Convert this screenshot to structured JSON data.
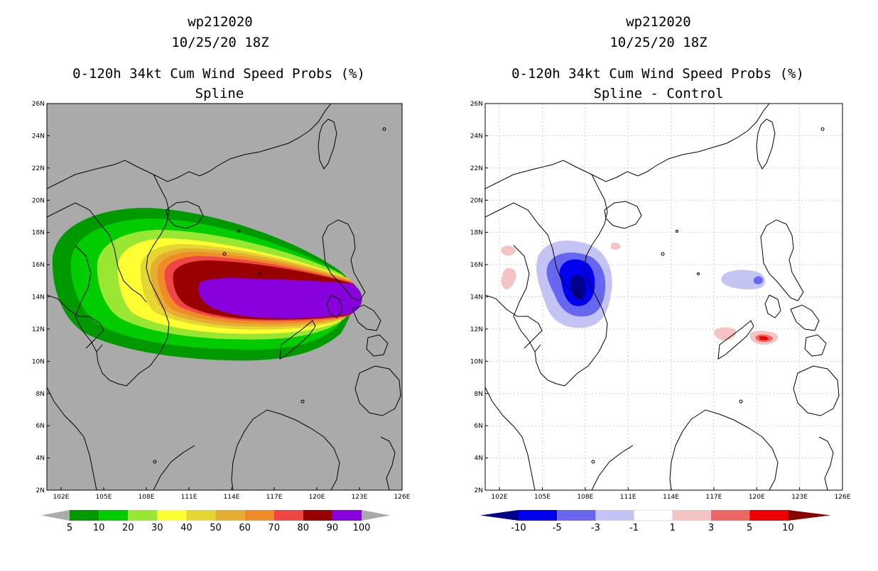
{
  "colors": {
    "map_background": "#aaaaaa",
    "prob_palette": [
      "#009900",
      "#00cc00",
      "#99e633",
      "#ffff33",
      "#e6d633",
      "#e6ad33",
      "#f08c28",
      "#f04646",
      "#990000",
      "#8800dd"
    ],
    "diff_palette": [
      "#000088",
      "#0000ee",
      "#6666ee",
      "#c4c4f4",
      "#ffffff",
      "#f4c4c4",
      "#ee6666",
      "#ee0000",
      "#880000"
    ]
  },
  "left": {
    "title_storm": "wp212020",
    "title_date": "10/25/20 18Z",
    "title_product": "0-120h 34kt Cum Wind Speed Probs (%)",
    "title_sub": "Spline",
    "colorbar_labels": [
      "5",
      "10",
      "20",
      "30",
      "40",
      "50",
      "60",
      "70",
      "80",
      "90",
      "100"
    ]
  },
  "right": {
    "title_storm": "wp212020",
    "title_date": "10/25/20 18Z",
    "title_product": "0-120h 34kt Cum Wind Speed Probs (%)",
    "title_sub": "Spline - Control",
    "colorbar_labels": [
      "-10",
      "-5",
      "-3",
      "-1",
      "1",
      "3",
      "5",
      "10"
    ]
  },
  "axes": {
    "lat_labels": [
      "26N",
      "24N",
      "22N",
      "20N",
      "18N",
      "16N",
      "14N",
      "12N",
      "10N",
      "8N",
      "6N",
      "4N",
      "2N"
    ],
    "lon_labels": [
      "102E",
      "105E",
      "108E",
      "111E",
      "114E",
      "117E",
      "120E",
      "123E",
      "126E"
    ]
  }
}
